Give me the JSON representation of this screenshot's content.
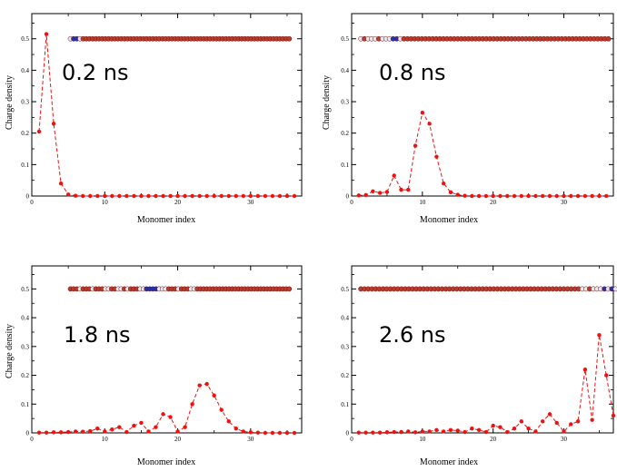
{
  "colors": {
    "series": "#ee1111",
    "bead_red": "#c0392b",
    "bead_white": "#e8e8ee",
    "bead_blue": "#2233bb"
  },
  "chart_data": [
    {
      "type": "line",
      "annotation": "0.2 ns",
      "xlabel": "Monomer index",
      "ylabel": "Charge density",
      "xlim": [
        0,
        37
      ],
      "ylim": [
        0,
        0.58
      ],
      "x_ticks": [
        0,
        10,
        20,
        30
      ],
      "y_ticks": [
        0,
        0.1,
        0.2,
        0.3,
        0.4,
        0.5
      ],
      "x_tick_labels": [
        "0",
        "10",
        "20",
        "30"
      ],
      "y_tick_labels": [
        "0",
        "0.1",
        "0.2",
        "0.3",
        "0.4",
        "0.5"
      ],
      "grid": false,
      "style": "dashed line with markers",
      "x": [
        1,
        2,
        3,
        4,
        5,
        6,
        7,
        8,
        9,
        10,
        11,
        12,
        13,
        14,
        15,
        16,
        17,
        18,
        19,
        20,
        21,
        22,
        23,
        24,
        25,
        26,
        27,
        28,
        29,
        30,
        31,
        32,
        33,
        34,
        35,
        36
      ],
      "y": [
        0.205,
        0.515,
        0.23,
        0.04,
        0.005,
        0.001,
        0,
        0,
        0,
        0,
        0,
        0,
        0,
        0,
        0,
        0,
        0,
        0,
        0,
        0,
        0,
        0,
        0,
        0,
        0,
        0,
        0,
        0,
        0,
        0,
        0,
        0,
        0,
        0,
        0,
        0
      ],
      "inset_chain_colors": [
        "w",
        "b",
        "b",
        "w",
        "r",
        "r",
        "r",
        "r",
        "r",
        "r",
        "r",
        "r",
        "r",
        "r",
        "r",
        "r",
        "r",
        "r",
        "r",
        "r",
        "r",
        "r",
        "r",
        "r",
        "r",
        "r",
        "r",
        "r",
        "r",
        "r",
        "r",
        "r",
        "r",
        "r",
        "r",
        "r",
        "r",
        "r",
        "r",
        "r",
        "r",
        "r",
        "r",
        "r",
        "r",
        "r",
        "r",
        "r",
        "r",
        "r",
        "r",
        "r",
        "r",
        "r",
        "r",
        "r",
        "r",
        "r",
        "r",
        "r",
        "r",
        "r",
        "r",
        "r",
        "r",
        "r",
        "r",
        "r",
        "r",
        "r"
      ],
      "inset_chain_range": [
        5.3,
        35.3
      ],
      "inset_chain_y": 0.5
    },
    {
      "type": "line",
      "annotation": "0.8 ns",
      "xlabel": "Monomer index",
      "ylabel": "Charge density",
      "xlim": [
        0,
        37
      ],
      "ylim": [
        0,
        0.58
      ],
      "x_ticks": [
        0,
        10,
        20,
        30
      ],
      "y_ticks": [
        0,
        0.1,
        0.2,
        0.3,
        0.4,
        0.5
      ],
      "x_tick_labels": [
        "0",
        "10",
        "20",
        "30"
      ],
      "y_tick_labels": [
        "0",
        "0.1",
        "0.2",
        "0.3",
        "0.4",
        "0.5"
      ],
      "grid": false,
      "style": "dashed line with markers",
      "x": [
        1,
        2,
        3,
        4,
        5,
        6,
        7,
        8,
        9,
        10,
        11,
        12,
        13,
        14,
        15,
        16,
        17,
        18,
        19,
        20,
        21,
        22,
        23,
        24,
        25,
        26,
        27,
        28,
        29,
        30,
        31,
        32,
        33,
        34,
        35,
        36
      ],
      "y": [
        0.002,
        0.003,
        0.015,
        0.01,
        0.013,
        0.065,
        0.02,
        0.02,
        0.16,
        0.265,
        0.23,
        0.125,
        0.04,
        0.012,
        0.004,
        0.001,
        0,
        0,
        0,
        0,
        0,
        0,
        0,
        0,
        0,
        0,
        0,
        0,
        0,
        0,
        0,
        0,
        0,
        0,
        0,
        0
      ],
      "inset_chain_colors": [
        "w",
        "r",
        "w",
        "w",
        "w",
        "r",
        "w",
        "w",
        "w",
        "b",
        "b",
        "w",
        "r",
        "r",
        "r",
        "r",
        "r",
        "r",
        "r",
        "r",
        "r",
        "r",
        "r",
        "r",
        "r",
        "r",
        "r",
        "r",
        "r",
        "r",
        "r",
        "r",
        "r",
        "r",
        "r",
        "r",
        "r",
        "r",
        "r",
        "r",
        "r",
        "r",
        "r",
        "r",
        "r",
        "r",
        "r",
        "r",
        "r",
        "r",
        "r",
        "r",
        "r",
        "r",
        "r",
        "r",
        "r",
        "r",
        "r",
        "r",
        "r",
        "r",
        "r",
        "r",
        "r",
        "r",
        "r",
        "r",
        "r",
        "r"
      ],
      "inset_chain_range": [
        1.3,
        36.3
      ],
      "inset_chain_y": 0.5
    },
    {
      "type": "line",
      "annotation": "1.8 ns",
      "xlabel": "Monomer index",
      "ylabel": "Charge density",
      "xlim": [
        0,
        37
      ],
      "ylim": [
        0,
        0.58
      ],
      "x_ticks": [
        0,
        10,
        20,
        30
      ],
      "y_ticks": [
        0,
        0.1,
        0.2,
        0.3,
        0.4,
        0.5
      ],
      "x_tick_labels": [
        "0",
        "10",
        "20",
        "30"
      ],
      "y_tick_labels": [
        "0",
        "0.1",
        "0.2",
        "0.3",
        "0.4",
        "0.5"
      ],
      "grid": false,
      "style": "dashed line with markers",
      "x": [
        1,
        2,
        3,
        4,
        5,
        6,
        7,
        8,
        9,
        10,
        11,
        12,
        13,
        14,
        15,
        16,
        17,
        18,
        19,
        20,
        21,
        22,
        23,
        24,
        25,
        26,
        27,
        28,
        29,
        30,
        31,
        32,
        33,
        34,
        35,
        36
      ],
      "y": [
        0.001,
        0.001,
        0.002,
        0.002,
        0.003,
        0.005,
        0.004,
        0.006,
        0.015,
        0.005,
        0.012,
        0.02,
        0.003,
        0.025,
        0.035,
        0.005,
        0.02,
        0.065,
        0.055,
        0.005,
        0.02,
        0.1,
        0.165,
        0.17,
        0.13,
        0.08,
        0.04,
        0.015,
        0.005,
        0.002,
        0.001,
        0,
        0,
        0,
        0,
        0
      ],
      "inset_chain_colors": [
        "r",
        "r",
        "r",
        "w",
        "r",
        "r",
        "r",
        "w",
        "r",
        "r",
        "r",
        "w",
        "w",
        "r",
        "r",
        "w",
        "w",
        "r",
        "w",
        "r",
        "r",
        "r",
        "w",
        "w",
        "b",
        "b",
        "b",
        "b",
        "w",
        "w",
        "w",
        "r",
        "r",
        "r",
        "w",
        "r",
        "r",
        "r",
        "w",
        "w",
        "r",
        "r",
        "r",
        "r",
        "r",
        "r",
        "r",
        "r",
        "r",
        "r",
        "r",
        "r",
        "r",
        "r",
        "r",
        "r",
        "r",
        "r",
        "r",
        "r",
        "r",
        "r",
        "r",
        "r",
        "r",
        "r",
        "r",
        "r",
        "r",
        "r"
      ],
      "inset_chain_range": [
        5.3,
        35.3
      ],
      "inset_chain_y": 0.5
    },
    {
      "type": "line",
      "annotation": "2.6 ns",
      "xlabel": "Monomer index",
      "ylabel": "",
      "xlim": [
        0,
        37
      ],
      "ylim": [
        0,
        0.58
      ],
      "x_ticks": [
        0,
        10,
        20,
        30
      ],
      "y_ticks": [
        0,
        0.1,
        0.2,
        0.3,
        0.4,
        0.5
      ],
      "x_tick_labels": [
        "0",
        "10",
        "20",
        "30"
      ],
      "y_tick_labels": [
        "0",
        "0.1",
        "0.2",
        "0.3",
        "0.4",
        "0.5"
      ],
      "grid": false,
      "style": "dashed line with markers",
      "x": [
        1,
        2,
        3,
        4,
        5,
        6,
        7,
        8,
        9,
        10,
        11,
        12,
        13,
        14,
        15,
        16,
        17,
        18,
        19,
        20,
        21,
        22,
        23,
        24,
        25,
        26,
        27,
        28,
        29,
        30,
        31,
        32,
        33,
        34,
        35,
        36,
        37
      ],
      "y": [
        0.001,
        0.001,
        0.001,
        0.001,
        0.002,
        0.003,
        0.003,
        0.005,
        0.002,
        0.005,
        0.005,
        0.01,
        0.005,
        0.01,
        0.008,
        0.003,
        0.015,
        0.01,
        0.003,
        0.025,
        0.02,
        0.003,
        0.015,
        0.04,
        0.015,
        0.005,
        0.04,
        0.065,
        0.035,
        0.005,
        0.03,
        0.04,
        0.22,
        0.045,
        0.34,
        0.2,
        0.06
      ],
      "inset_chain_colors": [
        "r",
        "r",
        "r",
        "r",
        "r",
        "r",
        "r",
        "r",
        "r",
        "r",
        "r",
        "r",
        "r",
        "r",
        "r",
        "r",
        "r",
        "r",
        "r",
        "r",
        "r",
        "r",
        "r",
        "r",
        "r",
        "r",
        "r",
        "r",
        "r",
        "r",
        "r",
        "r",
        "r",
        "r",
        "r",
        "r",
        "r",
        "r",
        "r",
        "r",
        "r",
        "r",
        "r",
        "r",
        "r",
        "r",
        "r",
        "r",
        "r",
        "r",
        "r",
        "r",
        "r",
        "r",
        "r",
        "r",
        "r",
        "r",
        "r",
        "r",
        "w",
        "w",
        "r",
        "w",
        "w",
        "w",
        "b",
        "w",
        "b",
        "w"
      ],
      "inset_chain_range": [
        1.3,
        37.3
      ],
      "inset_chain_y": 0.5
    }
  ]
}
